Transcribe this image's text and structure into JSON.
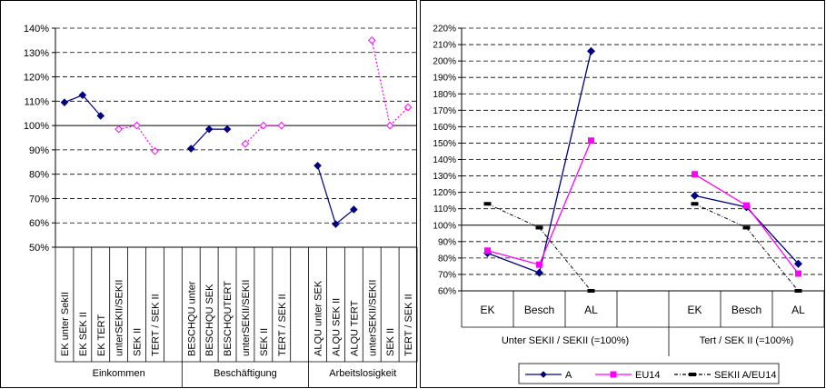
{
  "chart_data": [
    {
      "type": "line",
      "ylim": [
        0.5,
        1.4
      ],
      "yticks": [
        0.5,
        0.6,
        0.7,
        0.8,
        0.9,
        1.0,
        1.1,
        1.2,
        1.3,
        1.4
      ],
      "ytick_labels": [
        "50%",
        "60%",
        "70%",
        "80%",
        "90%",
        "100%",
        "110%",
        "120%",
        "130%",
        "140%"
      ],
      "grid": "dashed horizontal",
      "baseline": 1.0,
      "categories": [
        "EK unter SekII",
        "EK SEK II",
        "EK TERT",
        "unterSEKII/SEKII",
        "SEK II",
        "TERT / SEK II",
        "",
        "BESCHQU unter",
        "BESCHQU SEK",
        "BESCHQUTERT",
        "unterSEKII/SEKII",
        "SEK II",
        "TERT / SEK II",
        "",
        "ALQU unter SEK",
        "ALQU SEK II",
        "ALQU TERT",
        "unterSEKII/SEKII",
        "SEK II",
        "TERT / SEK II"
      ],
      "groups": [
        {
          "label": "Einkommen",
          "start": 0,
          "end": 6
        },
        {
          "label": "Beschäftigung",
          "start": 7,
          "end": 13
        },
        {
          "label": "Arbeitslosigkeit",
          "start": 14,
          "end": 19
        }
      ],
      "series": [
        {
          "values": [
            1.095,
            1.125,
            1.04,
            null,
            null,
            null,
            null,
            0.905,
            0.985,
            0.985,
            null,
            null,
            null,
            null,
            0.835,
            0.595,
            0.655,
            null,
            null,
            null
          ],
          "color": "#000080",
          "marker": "diamond-filled",
          "line": "solid"
        },
        {
          "values": [
            null,
            null,
            null,
            0.985,
            1.0,
            0.895,
            null,
            null,
            null,
            null,
            0.925,
            1.0,
            1.0,
            null,
            null,
            null,
            null,
            1.35,
            1.0,
            1.075
          ],
          "color": "#ff00ff",
          "marker": "diamond-open",
          "line": "dotted"
        }
      ]
    },
    {
      "type": "line",
      "ylim": [
        0.6,
        2.2
      ],
      "yticks": [
        0.6,
        0.7,
        0.8,
        0.9,
        1.0,
        1.1,
        1.2,
        1.3,
        1.4,
        1.5,
        1.6,
        1.7,
        1.8,
        1.9,
        2.0,
        2.1,
        2.2
      ],
      "ytick_labels": [
        "60%",
        "70%",
        "80%",
        "90%",
        "100%",
        "110%",
        "120%",
        "130%",
        "140%",
        "150%",
        "160%",
        "170%",
        "180%",
        "190%",
        "200%",
        "210%",
        "220%"
      ],
      "grid": "dashed horizontal",
      "baseline": 1.0,
      "categories": [
        "EK",
        "Besch",
        "AL",
        "",
        "EK",
        "Besch",
        "AL"
      ],
      "groups": [
        {
          "label": "Unter SEKII / SEKII (=100%)",
          "start": 0,
          "end": 3
        },
        {
          "label": "Tert / SEK II (=100%)",
          "start": 4,
          "end": 6
        }
      ],
      "series": [
        {
          "name": "A",
          "values": [
            0.83,
            0.71,
            2.06,
            null,
            1.18,
            1.11,
            0.765
          ],
          "color": "#000080",
          "marker": "diamond",
          "line": "solid"
        },
        {
          "name": "EU14",
          "values": [
            0.845,
            0.76,
            1.515,
            null,
            1.31,
            1.12,
            0.705
          ],
          "color": "#ff00ff",
          "marker": "square",
          "line": "solid"
        },
        {
          "name": "SEKII A/EU14",
          "values": [
            1.13,
            0.985,
            0.6,
            null,
            1.13,
            0.985,
            0.6
          ],
          "color": "#000000",
          "marker": "dash",
          "line": "dash-dot"
        }
      ],
      "legend": "bottom"
    }
  ]
}
